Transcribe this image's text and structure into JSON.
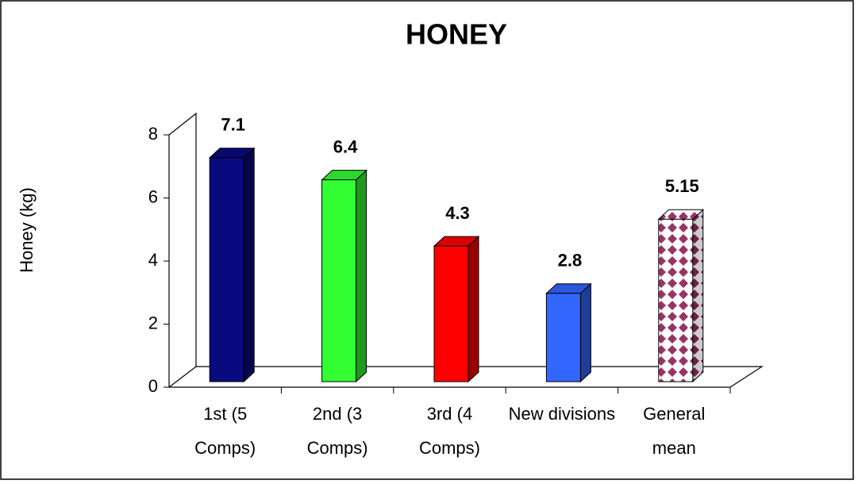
{
  "chart_data": {
    "type": "bar3d",
    "title": "HONEY",
    "y_label": "Honey (kg)",
    "categories": [
      "1st (5 Comps)",
      "2nd (3 Comps)",
      "3rd (4 Comps)",
      "New divisions",
      "General mean"
    ],
    "values": [
      7.1,
      6.4,
      4.3,
      2.8,
      5.15
    ],
    "colors": [
      "#0a0a80",
      "#33ff33",
      "#ff0000",
      "#3366ff",
      "pattern"
    ],
    "ylim": [
      0,
      8
    ],
    "yticks": [
      0,
      2,
      4,
      6,
      8
    ],
    "grid": false
  }
}
